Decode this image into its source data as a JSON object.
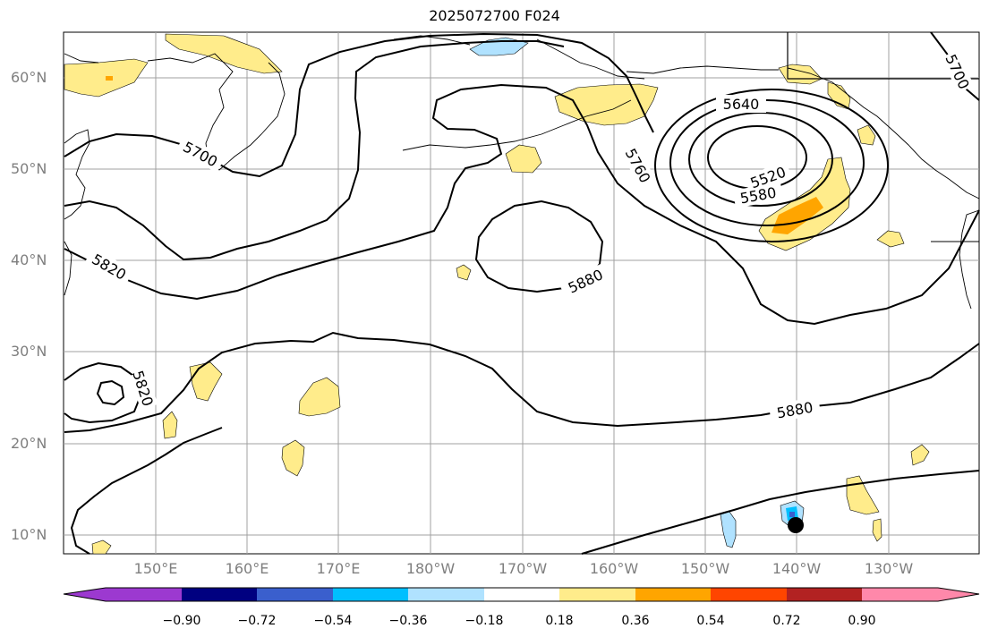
{
  "title": "2025072700 F024",
  "map": {
    "lat_labels": [
      "60°N",
      "50°N",
      "40°N",
      "30°N",
      "20°N",
      "10°N"
    ],
    "lon_labels": [
      "150°E",
      "160°E",
      "170°E",
      "180°W",
      "170°W",
      "160°W",
      "150°W",
      "140°W",
      "130°W"
    ],
    "contour_labels": [
      "5700",
      "5700",
      "5760",
      "5640",
      "5520",
      "5580",
      "5820",
      "5820",
      "5880",
      "5880"
    ],
    "marker": {
      "name": "storm-center-marker",
      "color": "#000000"
    }
  },
  "colorbar": {
    "tick_labels": [
      "−0.90",
      "−0.72",
      "−0.54",
      "−0.36",
      "−0.18",
      "0.18",
      "0.36",
      "0.54",
      "0.72",
      "0.90"
    ],
    "colors": [
      "#9c39d0",
      "#000080",
      "#3a5fcd",
      "#00bfff",
      "#b0e2ff",
      "#ffffff",
      "#ffec8b",
      "#ffa500",
      "#ff4500",
      "#b22222",
      "#ff88aa"
    ]
  }
}
